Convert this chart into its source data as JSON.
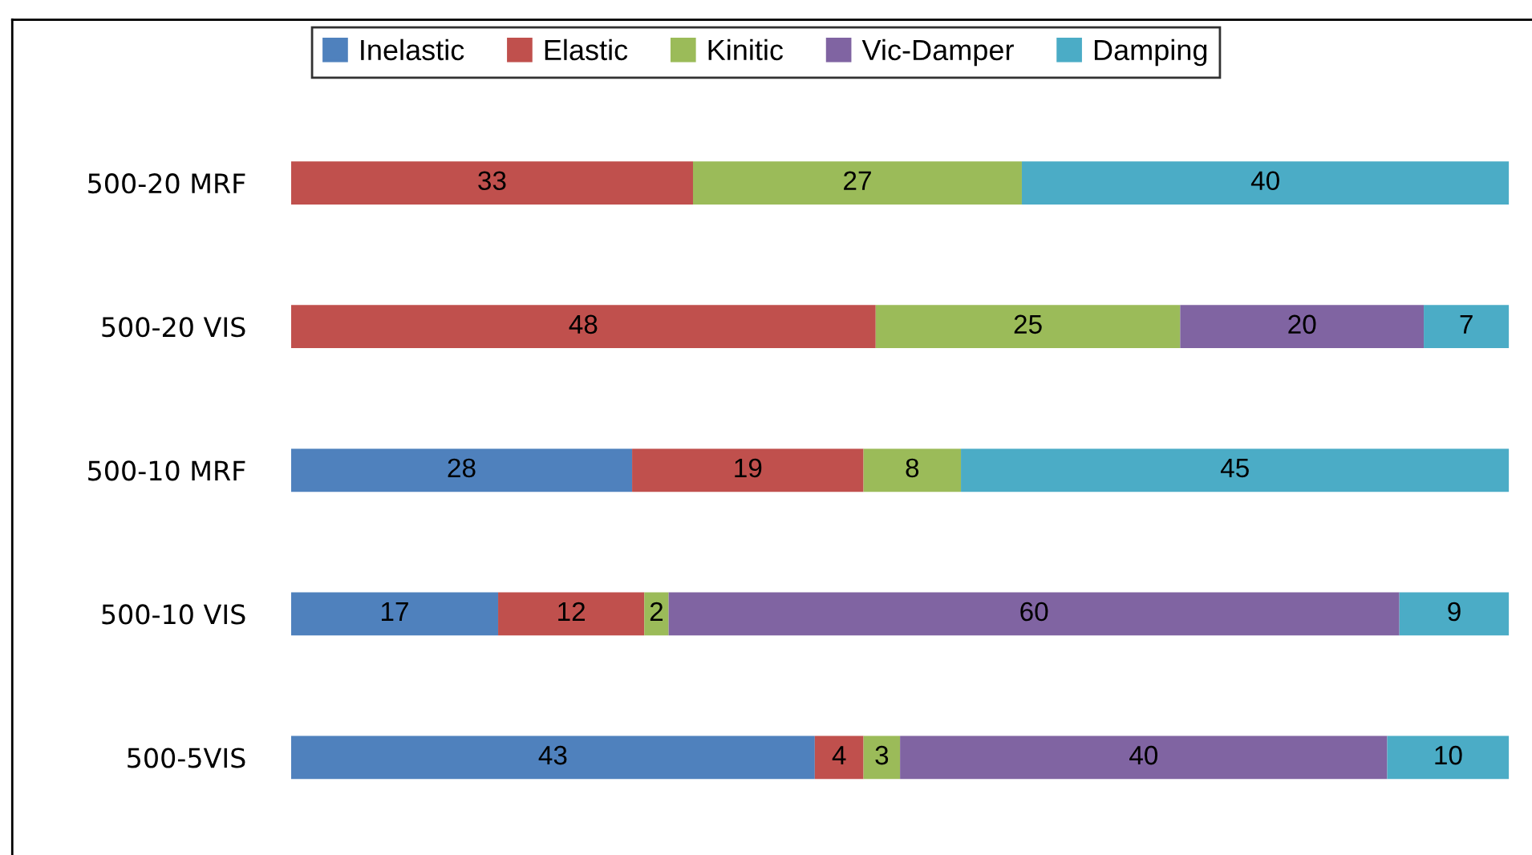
{
  "chart_data": {
    "type": "bar",
    "orientation": "horizontal",
    "stacked": true,
    "data_labels": true,
    "legend": "top",
    "grid": false,
    "xlim": [
      0,
      100
    ],
    "tick_labels": "y",
    "categories": [
      "500-20 MRF",
      "500-20 VIS",
      "500-10 MRF",
      "500-10 VIS",
      "500-5VIS"
    ],
    "series": [
      {
        "name": "Inelastic",
        "color": "#4f81bd",
        "values": [
          null,
          null,
          28,
          17,
          43
        ]
      },
      {
        "name": "Elastic",
        "color": "#c0504d",
        "values": [
          33,
          48,
          19,
          12,
          4
        ]
      },
      {
        "name": "Kinitic",
        "color": "#9bbb59",
        "values": [
          27,
          25,
          8,
          2,
          3
        ]
      },
      {
        "name": "Vic-Damper",
        "color": "#8064a2",
        "values": [
          null,
          20,
          null,
          60,
          40
        ]
      },
      {
        "name": "Damping",
        "color": "#4bacc6",
        "values": [
          40,
          7,
          45,
          9,
          10
        ]
      }
    ]
  }
}
